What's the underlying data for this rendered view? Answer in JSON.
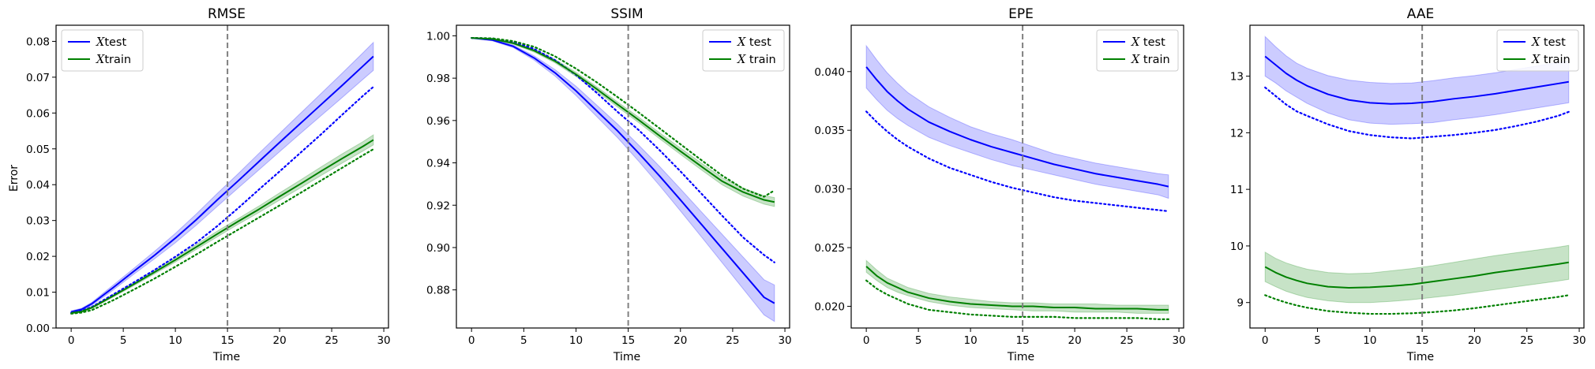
{
  "chart_data": [
    {
      "type": "line",
      "title": "RMSE",
      "xlabel": "Time",
      "ylabel": "Error",
      "xlim": [
        -1.45,
        30.45
      ],
      "ylim": [
        0,
        0.0845
      ],
      "xticks": [
        0,
        5,
        10,
        15,
        20,
        25,
        30
      ],
      "yticks": [
        0.0,
        0.01,
        0.02,
        0.03,
        0.04,
        0.05,
        0.06,
        0.07,
        0.08
      ],
      "ytick_labels": [
        "0.00",
        "0.01",
        "0.02",
        "0.03",
        "0.04",
        "0.05",
        "0.06",
        "0.07",
        "0.08"
      ],
      "vline": 15,
      "legend_position": "upper-left",
      "series": [
        {
          "name": "Xtest",
          "color": "#0000ff",
          "x": [
            0,
            1,
            2,
            4,
            6,
            8,
            10,
            12,
            14,
            16,
            18,
            20,
            22,
            24,
            26,
            28,
            29
          ],
          "mean": [
            0.0045,
            0.0052,
            0.0068,
            0.0112,
            0.0158,
            0.0203,
            0.0251,
            0.0302,
            0.0357,
            0.041,
            0.0464,
            0.0518,
            0.0571,
            0.0624,
            0.0677,
            0.0731,
            0.0758
          ],
          "lower": [
            0.0042,
            0.0049,
            0.0064,
            0.0105,
            0.015,
            0.0193,
            0.0238,
            0.0287,
            0.0339,
            0.039,
            0.0441,
            0.0492,
            0.0543,
            0.0593,
            0.0643,
            0.0694,
            0.0719
          ],
          "upper": [
            0.0048,
            0.0055,
            0.0072,
            0.0119,
            0.0166,
            0.0214,
            0.0264,
            0.0318,
            0.0375,
            0.043,
            0.0487,
            0.0543,
            0.0599,
            0.0655,
            0.0711,
            0.0768,
            0.0797
          ],
          "dotted": [
            0.0043,
            0.0048,
            0.0059,
            0.0093,
            0.0127,
            0.0162,
            0.0199,
            0.0238,
            0.0284,
            0.0334,
            0.0386,
            0.0437,
            0.0489,
            0.0541,
            0.0595,
            0.0648,
            0.0673
          ]
        },
        {
          "name": "Xtrain",
          "color": "#008000",
          "x": [
            0,
            1,
            2,
            4,
            6,
            8,
            10,
            12,
            14,
            16,
            18,
            20,
            22,
            24,
            26,
            28,
            29
          ],
          "mean": [
            0.0042,
            0.0046,
            0.0057,
            0.0089,
            0.0122,
            0.0156,
            0.019,
            0.0226,
            0.0262,
            0.0297,
            0.0331,
            0.0367,
            0.0402,
            0.0438,
            0.0473,
            0.0507,
            0.0525
          ],
          "lower": [
            0.004,
            0.0044,
            0.0054,
            0.0086,
            0.0118,
            0.0151,
            0.0184,
            0.0219,
            0.0254,
            0.0289,
            0.0322,
            0.0357,
            0.0391,
            0.0426,
            0.046,
            0.0494,
            0.0511
          ],
          "upper": [
            0.0044,
            0.0048,
            0.006,
            0.0092,
            0.0126,
            0.0161,
            0.0196,
            0.0233,
            0.027,
            0.0305,
            0.034,
            0.0377,
            0.0413,
            0.045,
            0.0486,
            0.052,
            0.0539
          ],
          "dotted": [
            0.004,
            0.0043,
            0.005,
            0.0077,
            0.0107,
            0.0138,
            0.0171,
            0.0205,
            0.024,
            0.0274,
            0.0308,
            0.0342,
            0.0377,
            0.0412,
            0.0447,
            0.0482,
            0.0499
          ]
        }
      ]
    },
    {
      "type": "line",
      "title": "SSIM",
      "xlabel": "Time",
      "ylabel": "",
      "xlim": [
        -1.45,
        30.45
      ],
      "ylim": [
        0.862,
        1.005
      ],
      "xticks": [
        0,
        5,
        10,
        15,
        20,
        25,
        30
      ],
      "yticks": [
        0.88,
        0.9,
        0.92,
        0.94,
        0.96,
        0.98,
        1.0
      ],
      "ytick_labels": [
        "0.88",
        "0.90",
        "0.92",
        "0.94",
        "0.96",
        "0.98",
        "1.00"
      ],
      "vline": 15,
      "legend_position": "upper-right",
      "series": [
        {
          "name": "X test",
          "color": "#0000ff",
          "x": [
            0,
            2,
            4,
            6,
            8,
            10,
            12,
            14,
            16,
            18,
            20,
            22,
            24,
            26,
            28,
            29
          ],
          "mean": [
            0.999,
            0.998,
            0.995,
            0.9895,
            0.9825,
            0.974,
            0.9645,
            0.955,
            0.9446,
            0.9338,
            0.9225,
            0.911,
            0.8995,
            0.888,
            0.8765,
            0.8737
          ],
          "lower": [
            0.9988,
            0.9976,
            0.9944,
            0.9885,
            0.981,
            0.9718,
            0.9618,
            0.9518,
            0.9408,
            0.9293,
            0.9173,
            0.9051,
            0.8928,
            0.8805,
            0.8682,
            0.8651
          ],
          "upper": [
            0.9992,
            0.9984,
            0.9956,
            0.9905,
            0.984,
            0.9762,
            0.9672,
            0.9582,
            0.9484,
            0.9383,
            0.9277,
            0.9169,
            0.9062,
            0.8955,
            0.8848,
            0.8823
          ],
          "dotted": [
            0.999,
            0.9988,
            0.9972,
            0.9938,
            0.9885,
            0.9815,
            0.973,
            0.964,
            0.9555,
            0.946,
            0.936,
            0.9255,
            0.915,
            0.9048,
            0.8965,
            0.893
          ]
        },
        {
          "name": "X train",
          "color": "#008000",
          "x": [
            0,
            2,
            4,
            6,
            8,
            10,
            12,
            14,
            16,
            18,
            20,
            22,
            24,
            26,
            28,
            29
          ],
          "mean": [
            0.999,
            0.9985,
            0.9965,
            0.993,
            0.988,
            0.9818,
            0.9748,
            0.9675,
            0.9603,
            0.9528,
            0.9455,
            0.9383,
            0.9313,
            0.9262,
            0.9225,
            0.9215
          ],
          "lower": [
            0.9988,
            0.9982,
            0.996,
            0.9923,
            0.9872,
            0.9808,
            0.9737,
            0.9663,
            0.959,
            0.9514,
            0.944,
            0.9367,
            0.9296,
            0.9243,
            0.9205,
            0.9194
          ],
          "upper": [
            0.9992,
            0.9988,
            0.997,
            0.9937,
            0.9888,
            0.9828,
            0.9759,
            0.9687,
            0.9616,
            0.9542,
            0.947,
            0.9399,
            0.933,
            0.9281,
            0.9245,
            0.9236
          ],
          "dotted": [
            0.999,
            0.9988,
            0.9975,
            0.9948,
            0.9903,
            0.9845,
            0.978,
            0.971,
            0.9638,
            0.9563,
            0.9488,
            0.9413,
            0.934,
            0.9278,
            0.924,
            0.927
          ]
        }
      ]
    },
    {
      "type": "line",
      "title": "EPE",
      "xlabel": "Time",
      "ylabel": "",
      "xlim": [
        -1.45,
        30.45
      ],
      "ylim": [
        0.01815,
        0.04395
      ],
      "xticks": [
        0,
        5,
        10,
        15,
        20,
        25,
        30
      ],
      "yticks": [
        0.02,
        0.025,
        0.03,
        0.035,
        0.04
      ],
      "ytick_labels": [
        "0.020",
        "0.025",
        "0.030",
        "0.035",
        "0.040"
      ],
      "vline": 15,
      "legend_position": "upper-right",
      "series": [
        {
          "name": "X test",
          "color": "#0000ff",
          "x": [
            0,
            1,
            2,
            3,
            4,
            6,
            8,
            10,
            12,
            14,
            16,
            18,
            20,
            22,
            24,
            26,
            28,
            29
          ],
          "mean": [
            0.0404,
            0.0393,
            0.0383,
            0.0375,
            0.0368,
            0.0357,
            0.0349,
            0.0342,
            0.0336,
            0.0331,
            0.0326,
            0.0321,
            0.0317,
            0.0313,
            0.031,
            0.0307,
            0.0304,
            0.0302
          ],
          "lower": [
            0.0386,
            0.0376,
            0.0367,
            0.036,
            0.0354,
            0.0344,
            0.0337,
            0.0331,
            0.0325,
            0.032,
            0.0316,
            0.0312,
            0.0308,
            0.0304,
            0.0301,
            0.0298,
            0.0295,
            0.0292
          ],
          "upper": [
            0.0422,
            0.041,
            0.0399,
            0.039,
            0.0382,
            0.037,
            0.0361,
            0.0353,
            0.0347,
            0.0342,
            0.0336,
            0.033,
            0.0326,
            0.0322,
            0.0319,
            0.0316,
            0.0313,
            0.0312
          ],
          "dotted": [
            0.0366,
            0.0357,
            0.0349,
            0.0342,
            0.0336,
            0.0326,
            0.0318,
            0.0312,
            0.0306,
            0.0301,
            0.0297,
            0.0293,
            0.029,
            0.0288,
            0.0286,
            0.0284,
            0.0282,
            0.0281
          ]
        },
        {
          "name": "X train",
          "color": "#008000",
          "x": [
            0,
            1,
            2,
            3,
            4,
            6,
            8,
            10,
            12,
            14,
            16,
            18,
            20,
            22,
            24,
            26,
            28,
            29
          ],
          "mean": [
            0.0234,
            0.0226,
            0.022,
            0.0216,
            0.0212,
            0.0207,
            0.0204,
            0.0202,
            0.0201,
            0.02,
            0.02,
            0.0199,
            0.0199,
            0.0198,
            0.0198,
            0.0198,
            0.0197,
            0.0197
          ],
          "lower": [
            0.0229,
            0.0222,
            0.0216,
            0.0212,
            0.0209,
            0.0204,
            0.0201,
            0.0199,
            0.0198,
            0.0197,
            0.0196,
            0.0196,
            0.0195,
            0.0195,
            0.0195,
            0.0194,
            0.0194,
            0.0194
          ],
          "upper": [
            0.0239,
            0.0231,
            0.0224,
            0.022,
            0.0216,
            0.0211,
            0.0208,
            0.0206,
            0.0204,
            0.0203,
            0.0203,
            0.0202,
            0.0202,
            0.0202,
            0.0201,
            0.0201,
            0.0201,
            0.0201
          ],
          "dotted": [
            0.0222,
            0.0215,
            0.021,
            0.0206,
            0.0202,
            0.0197,
            0.0195,
            0.0193,
            0.0192,
            0.0191,
            0.0191,
            0.0191,
            0.019,
            0.019,
            0.019,
            0.019,
            0.0189,
            0.0189
          ]
        }
      ]
    },
    {
      "type": "line",
      "title": "AAE",
      "xlabel": "Time",
      "ylabel": "",
      "xlim": [
        -1.45,
        30.45
      ],
      "ylim": [
        8.55,
        13.9
      ],
      "xticks": [
        0,
        5,
        10,
        15,
        20,
        25,
        30
      ],
      "yticks": [
        9,
        10,
        11,
        12,
        13
      ],
      "ytick_labels": [
        "9",
        "10",
        "11",
        "12",
        "13"
      ],
      "vline": 15,
      "legend_position": "upper-right",
      "series": [
        {
          "name": "X test",
          "color": "#0000ff",
          "x": [
            0,
            1,
            2,
            3,
            4,
            6,
            8,
            10,
            12,
            14,
            16,
            18,
            20,
            22,
            24,
            26,
            28,
            29
          ],
          "mean": [
            13.35,
            13.2,
            13.05,
            12.93,
            12.83,
            12.68,
            12.58,
            12.53,
            12.51,
            12.52,
            12.55,
            12.6,
            12.64,
            12.69,
            12.75,
            12.81,
            12.87,
            12.9
          ],
          "lower": [
            13.0,
            12.88,
            12.74,
            12.63,
            12.52,
            12.35,
            12.23,
            12.17,
            12.15,
            12.16,
            12.18,
            12.23,
            12.27,
            12.32,
            12.38,
            12.44,
            12.5,
            12.53
          ],
          "upper": [
            13.7,
            13.52,
            13.36,
            13.23,
            13.14,
            13.01,
            12.93,
            12.89,
            12.87,
            12.88,
            12.92,
            12.97,
            13.01,
            13.06,
            13.12,
            13.18,
            13.24,
            13.27
          ],
          "dotted": [
            12.8,
            12.65,
            12.5,
            12.38,
            12.3,
            12.15,
            12.03,
            11.96,
            11.92,
            11.9,
            11.93,
            11.96,
            12.0,
            12.05,
            12.12,
            12.2,
            12.3,
            12.37
          ]
        },
        {
          "name": "X train",
          "color": "#008000",
          "x": [
            0,
            1,
            2,
            3,
            4,
            6,
            8,
            10,
            12,
            14,
            16,
            18,
            20,
            22,
            24,
            26,
            28,
            29
          ],
          "mean": [
            9.63,
            9.53,
            9.45,
            9.39,
            9.34,
            9.28,
            9.26,
            9.27,
            9.29,
            9.32,
            9.37,
            9.42,
            9.47,
            9.53,
            9.58,
            9.63,
            9.68,
            9.71
          ],
          "lower": [
            9.37,
            9.28,
            9.2,
            9.14,
            9.09,
            9.03,
            9.0,
            9.0,
            9.02,
            9.05,
            9.09,
            9.13,
            9.18,
            9.23,
            9.28,
            9.33,
            9.38,
            9.41
          ],
          "upper": [
            9.89,
            9.78,
            9.7,
            9.64,
            9.59,
            9.53,
            9.51,
            9.52,
            9.56,
            9.6,
            9.65,
            9.71,
            9.77,
            9.83,
            9.88,
            9.93,
            9.98,
            10.01
          ],
          "dotted": [
            9.13,
            9.06,
            9.0,
            8.95,
            8.91,
            8.85,
            8.82,
            8.8,
            8.8,
            8.81,
            8.83,
            8.86,
            8.9,
            8.95,
            9.0,
            9.05,
            9.1,
            9.13
          ]
        }
      ]
    }
  ]
}
